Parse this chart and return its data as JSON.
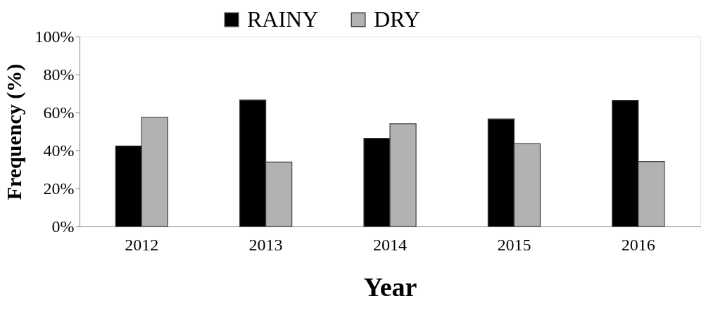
{
  "chart_data": {
    "type": "bar",
    "xlabel": "Year",
    "ylabel": "Frequency (%)",
    "categories": [
      "2012",
      "2013",
      "2014",
      "2015",
      "2016"
    ],
    "series": [
      {
        "name": "RAINY",
        "color": "#000000",
        "values": [
          42.4,
          66.6,
          46.4,
          56.6,
          66.4
        ]
      },
      {
        "name": "DRY",
        "color": "#b2b2b2",
        "values": [
          57.6,
          33.9,
          54.1,
          43.6,
          34.2
        ]
      }
    ],
    "ylim": [
      0,
      100
    ],
    "yticks": [
      {
        "value": 0,
        "label": "0%"
      },
      {
        "value": 20,
        "label": "20%"
      },
      {
        "value": 40,
        "label": "40%"
      },
      {
        "value": 60,
        "label": "60%"
      },
      {
        "value": 80,
        "label": "80%"
      },
      {
        "value": 100,
        "label": "100%"
      }
    ],
    "grid": false,
    "legend": "top"
  }
}
